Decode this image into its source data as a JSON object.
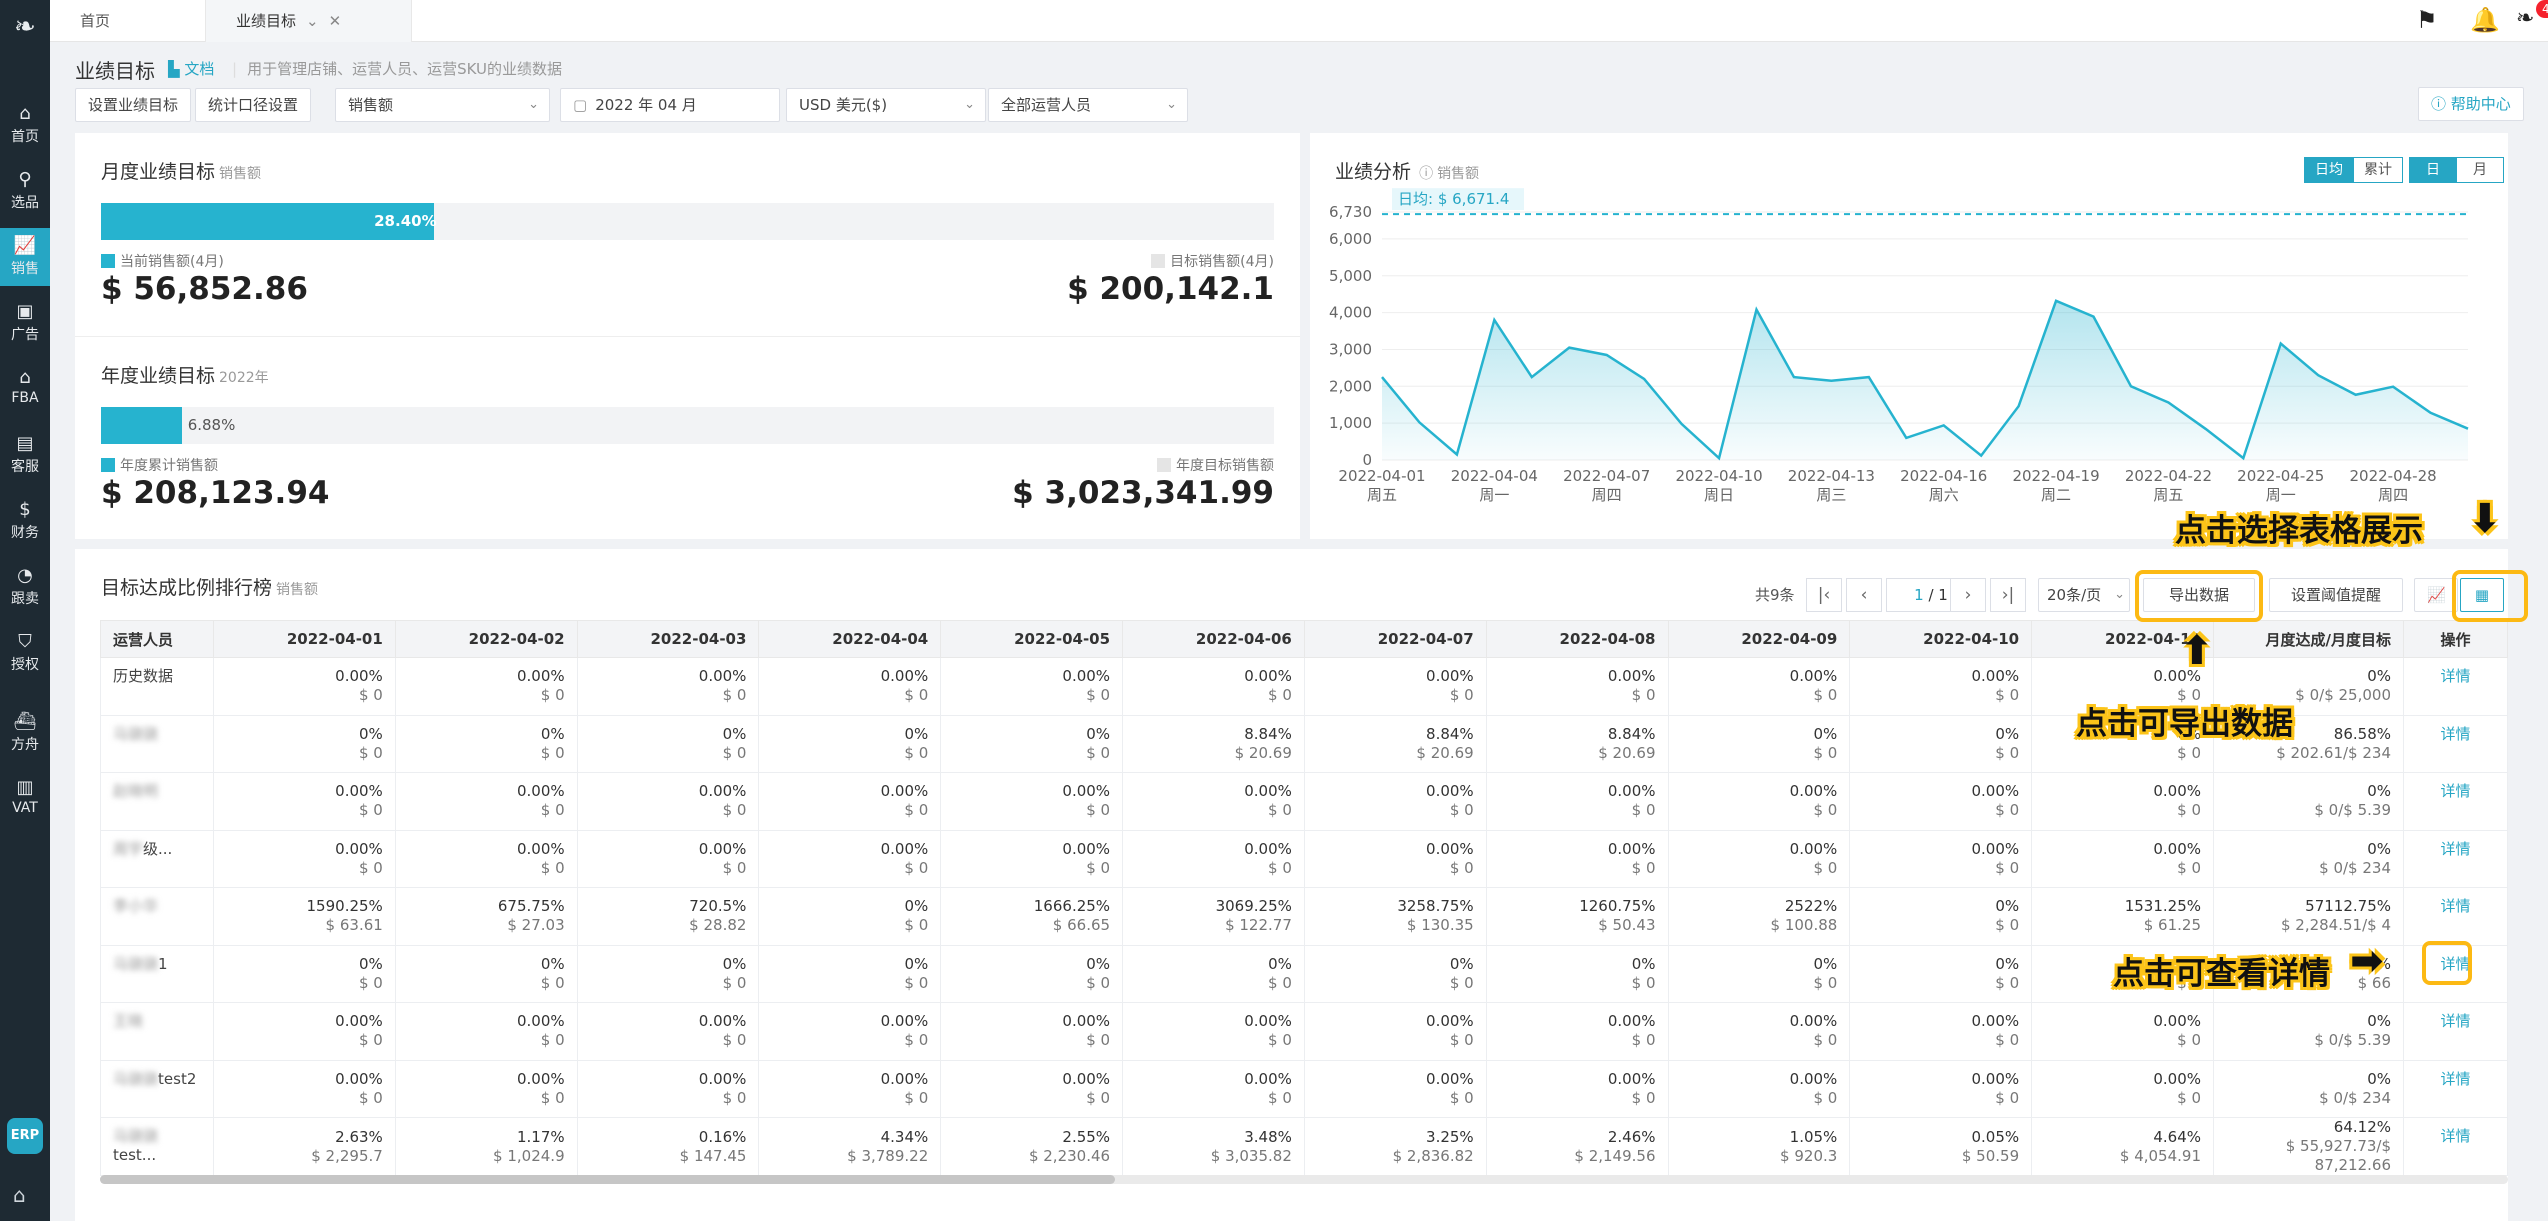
{
  "sidebar": {
    "items": [
      {
        "label": "首页",
        "icon": "home-icon",
        "glyph": "⌂"
      },
      {
        "label": "选品",
        "icon": "search-icon",
        "glyph": "⚲"
      },
      {
        "label": "销售",
        "icon": "sales-chart-icon",
        "glyph": "📈"
      },
      {
        "label": "广告",
        "icon": "ad-icon",
        "glyph": "▣"
      },
      {
        "label": "FBA",
        "icon": "warehouse-icon",
        "glyph": "⌂"
      },
      {
        "label": "客服",
        "icon": "service-icon",
        "glyph": "▤"
      },
      {
        "label": "财务",
        "icon": "dollar-icon",
        "glyph": "$"
      },
      {
        "label": "跟卖",
        "icon": "pie-icon",
        "glyph": "◔"
      },
      {
        "label": "授权",
        "icon": "shield-icon",
        "glyph": "⛉"
      },
      {
        "label": "方舟",
        "icon": "ark-icon",
        "glyph": "⛴"
      },
      {
        "label": "VAT",
        "icon": "building-icon",
        "glyph": "▥"
      }
    ],
    "erp": "ERP"
  },
  "tabs": [
    {
      "label": "首页"
    },
    {
      "label": "业绩目标"
    }
  ],
  "header": {
    "notification_count": "46"
  },
  "page": {
    "title": "业绩目标",
    "doc_link": "文档",
    "desc": "用于管理店铺、运营人员、运营SKU的业绩数据",
    "help": "帮助中心"
  },
  "toolbar": {
    "set_goal": "设置业绩目标",
    "stat_setting": "统计口径设置",
    "metric": "销售额",
    "month": "2022 年 04 月",
    "currency": "USD 美元($)",
    "staff": "全部运营人员"
  },
  "monthly": {
    "title": "月度业绩目标",
    "sub": "销售额",
    "pct": "28.40%",
    "progress": 0.284,
    "cur_label": "当前销售额(4月)",
    "cur_value": "$ 56,852.86",
    "target_label": "目标销售额(4月)",
    "target_value": "$ 200,142.1"
  },
  "yearly": {
    "title": "年度业绩目标",
    "sub": "2022年",
    "pct": "6.88%",
    "progress": 0.0688,
    "cur_label": "年度累计销售额",
    "cur_value": "$ 208,123.94",
    "target_label": "年度目标销售额",
    "target_value": "$ 3,023,341.99"
  },
  "colors": {
    "accent": "#26a6c4",
    "bar": "#26b3cf",
    "highlight": "#fcc419"
  },
  "analysis": {
    "title": "业绩分析",
    "sub": "销售额",
    "seg1": [
      "日均",
      "累计"
    ],
    "seg2": [
      "日",
      "月"
    ],
    "avg_label": "日均: $ 6,671.4"
  },
  "chart_data": {
    "type": "area",
    "ylim": [
      0,
      6730
    ],
    "yticks": [
      "6,730",
      "6,000",
      "5,000",
      "4,000",
      "3,000",
      "2,000",
      "1,000",
      "0"
    ],
    "ytick_values": [
      6730,
      6000,
      5000,
      4000,
      3000,
      2000,
      1000,
      0
    ],
    "reference_line": 6671.4,
    "xticks": [
      {
        "date": "2022-04-01",
        "day": "周五",
        "i": 0
      },
      {
        "date": "2022-04-04",
        "day": "周一",
        "i": 3
      },
      {
        "date": "2022-04-07",
        "day": "周四",
        "i": 6
      },
      {
        "date": "2022-04-10",
        "day": "周日",
        "i": 9
      },
      {
        "date": "2022-04-13",
        "day": "周三",
        "i": 12
      },
      {
        "date": "2022-04-16",
        "day": "周六",
        "i": 15
      },
      {
        "date": "2022-04-19",
        "day": "周二",
        "i": 18
      },
      {
        "date": "2022-04-22",
        "day": "周五",
        "i": 21
      },
      {
        "date": "2022-04-25",
        "day": "周一",
        "i": 24
      },
      {
        "date": "2022-04-28",
        "day": "周四",
        "i": 27
      }
    ],
    "values": [
      2250,
      1020,
      150,
      3800,
      2250,
      3050,
      2850,
      2200,
      980,
      50,
      4080,
      2250,
      2150,
      2250,
      600,
      940,
      120,
      1460,
      4320,
      3890,
      2000,
      1560,
      840,
      50,
      3160,
      2300,
      1770,
      1990,
      1280,
      850
    ]
  },
  "ranking": {
    "title": "目标达成比例排行榜",
    "sub": "销售额",
    "total": "共9条",
    "page_cur": "1",
    "page_total": "/ 1",
    "page_size": "20条/页",
    "export": "导出数据",
    "threshold": "设置阈值提醒",
    "columns": [
      "运营人员",
      "2022-04-01",
      "2022-04-02",
      "2022-04-03",
      "2022-04-04",
      "2022-04-05",
      "2022-04-06",
      "2022-04-07",
      "2022-04-08",
      "2022-04-09",
      "2022-04-10",
      "2022-04-11",
      "月度达成/月度目标",
      "操作"
    ],
    "detail": "详情",
    "rows": [
      {
        "name": "历史数据",
        "blur": "",
        "cells": [
          [
            "0.00%",
            "$ 0"
          ],
          [
            "0.00%",
            "$ 0"
          ],
          [
            "0.00%",
            "$ 0"
          ],
          [
            "0.00%",
            "$ 0"
          ],
          [
            "0.00%",
            "$ 0"
          ],
          [
            "0.00%",
            "$ 0"
          ],
          [
            "0.00%",
            "$ 0"
          ],
          [
            "0.00%",
            "$ 0"
          ],
          [
            "0.00%",
            "$ 0"
          ],
          [
            "0.00%",
            "$ 0"
          ],
          [
            "0.00%",
            "$ 0"
          ]
        ],
        "month": [
          "0%",
          "$ 0/$ 25,000"
        ]
      },
      {
        "name": "",
        "blur": "马骁骁",
        "cells": [
          [
            "0%",
            "$ 0"
          ],
          [
            "0%",
            "$ 0"
          ],
          [
            "0%",
            "$ 0"
          ],
          [
            "0%",
            "$ 0"
          ],
          [
            "0%",
            "$ 0"
          ],
          [
            "8.84%",
            "$ 20.69"
          ],
          [
            "8.84%",
            "$ 20.69"
          ],
          [
            "8.84%",
            "$ 20.69"
          ],
          [
            "0%",
            "$ 0"
          ],
          [
            "0%",
            "$ 0"
          ],
          [
            "0%",
            "$ 0"
          ]
        ],
        "month": [
          "86.58%",
          "$ 202.61/$ 234"
        ]
      },
      {
        "name": "",
        "blur": "赵晓明",
        "cells": [
          [
            "0.00%",
            "$ 0"
          ],
          [
            "0.00%",
            "$ 0"
          ],
          [
            "0.00%",
            "$ 0"
          ],
          [
            "0.00%",
            "$ 0"
          ],
          [
            "0.00%",
            "$ 0"
          ],
          [
            "0.00%",
            "$ 0"
          ],
          [
            "0.00%",
            "$ 0"
          ],
          [
            "0.00%",
            "$ 0"
          ],
          [
            "0.00%",
            "$ 0"
          ],
          [
            "0.00%",
            "$ 0"
          ],
          [
            "0.00%",
            "$ 0"
          ]
        ],
        "month": [
          "0%",
          "$ 0/$ 5.39"
        ]
      },
      {
        "name": "级...",
        "blur": "周宇",
        "cells": [
          [
            "0.00%",
            "$ 0"
          ],
          [
            "0.00%",
            "$ 0"
          ],
          [
            "0.00%",
            "$ 0"
          ],
          [
            "0.00%",
            "$ 0"
          ],
          [
            "0.00%",
            "$ 0"
          ],
          [
            "0.00%",
            "$ 0"
          ],
          [
            "0.00%",
            "$ 0"
          ],
          [
            "0.00%",
            "$ 0"
          ],
          [
            "0.00%",
            "$ 0"
          ],
          [
            "0.00%",
            "$ 0"
          ],
          [
            "0.00%",
            "$ 0"
          ]
        ],
        "month": [
          "0%",
          "$ 0/$ 234"
        ]
      },
      {
        "name": "",
        "blur": "李小华",
        "cells": [
          [
            "1590.25%",
            "$ 63.61"
          ],
          [
            "675.75%",
            "$ 27.03"
          ],
          [
            "720.5%",
            "$ 28.82"
          ],
          [
            "0%",
            "$ 0"
          ],
          [
            "1666.25%",
            "$ 66.65"
          ],
          [
            "3069.25%",
            "$ 122.77"
          ],
          [
            "3258.75%",
            "$ 130.35"
          ],
          [
            "1260.75%",
            "$ 50.43"
          ],
          [
            "2522%",
            "$ 100.88"
          ],
          [
            "0%",
            "$ 0"
          ],
          [
            "1531.25%",
            "$ 61.25"
          ]
        ],
        "month": [
          "57112.75%",
          "$ 2,284.51/$ 4"
        ]
      },
      {
        "name": "1",
        "blur": "马骁骁",
        "cells": [
          [
            "0%",
            "$ 0"
          ],
          [
            "0%",
            "$ 0"
          ],
          [
            "0%",
            "$ 0"
          ],
          [
            "0%",
            "$ 0"
          ],
          [
            "0%",
            "$ 0"
          ],
          [
            "0%",
            "$ 0"
          ],
          [
            "0%",
            "$ 0"
          ],
          [
            "0%",
            "$ 0"
          ],
          [
            "0%",
            "$ 0"
          ],
          [
            "0%",
            "$ 0"
          ],
          [
            "0%",
            "$ 0"
          ]
        ],
        "month": [
          "0%",
          "$ 66"
        ]
      },
      {
        "name": "",
        "blur": "王晓",
        "cells": [
          [
            "0.00%",
            "$ 0"
          ],
          [
            "0.00%",
            "$ 0"
          ],
          [
            "0.00%",
            "$ 0"
          ],
          [
            "0.00%",
            "$ 0"
          ],
          [
            "0.00%",
            "$ 0"
          ],
          [
            "0.00%",
            "$ 0"
          ],
          [
            "0.00%",
            "$ 0"
          ],
          [
            "0.00%",
            "$ 0"
          ],
          [
            "0.00%",
            "$ 0"
          ],
          [
            "0.00%",
            "$ 0"
          ],
          [
            "0.00%",
            "$ 0"
          ]
        ],
        "month": [
          "0%",
          "$ 0/$ 5.39"
        ]
      },
      {
        "name": "test2",
        "blur": "马骁骁",
        "cells": [
          [
            "0.00%",
            "$ 0"
          ],
          [
            "0.00%",
            "$ 0"
          ],
          [
            "0.00%",
            "$ 0"
          ],
          [
            "0.00%",
            "$ 0"
          ],
          [
            "0.00%",
            "$ 0"
          ],
          [
            "0.00%",
            "$ 0"
          ],
          [
            "0.00%",
            "$ 0"
          ],
          [
            "0.00%",
            "$ 0"
          ],
          [
            "0.00%",
            "$ 0"
          ],
          [
            "0.00%",
            "$ 0"
          ],
          [
            "0.00%",
            "$ 0"
          ]
        ],
        "month": [
          "0%",
          "$ 0/$ 234"
        ]
      },
      {
        "name": "test...",
        "blur": "马骁骁",
        "cells": [
          [
            "2.63%",
            "$ 2,295.7"
          ],
          [
            "1.17%",
            "$ 1,024.9"
          ],
          [
            "0.16%",
            "$ 147.45"
          ],
          [
            "4.34%",
            "$ 3,789.22"
          ],
          [
            "2.55%",
            "$ 2,230.46"
          ],
          [
            "3.48%",
            "$ 3,035.82"
          ],
          [
            "3.25%",
            "$ 2,836.82"
          ],
          [
            "2.46%",
            "$ 2,149.56"
          ],
          [
            "1.05%",
            "$ 920.3"
          ],
          [
            "0.05%",
            "$ 50.59"
          ],
          [
            "4.64%",
            "$ 4,054.91"
          ]
        ],
        "month": [
          "64.12%",
          "$ 55,927.73/$ 87,212.66"
        ]
      }
    ]
  },
  "annotations": {
    "table_view": "点击选择表格展示",
    "export": "点击可导出数据",
    "detail": "点击可查看详情"
  }
}
